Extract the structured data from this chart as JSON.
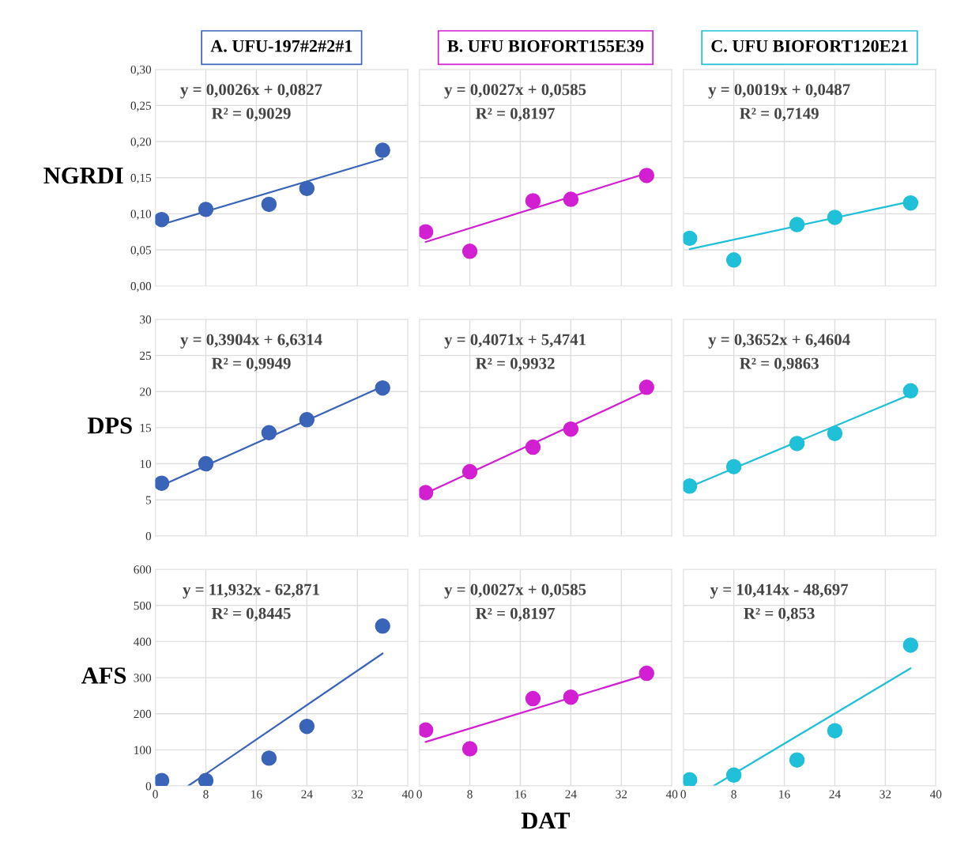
{
  "chart_data": [
    {
      "type": "scatter",
      "title": "A. UFU-197#2#2#1",
      "ylabel": "NGRDI",
      "xlim": [
        0,
        40
      ],
      "xticks": [
        0,
        8,
        16,
        24,
        32,
        40
      ],
      "ylim": [
        0,
        0.3
      ],
      "yticks": [
        {
          "value": 0,
          "label": "0,00"
        },
        {
          "value": 0.05,
          "label": "0,05"
        },
        {
          "value": 0.1,
          "label": "0,10"
        },
        {
          "value": 0.15,
          "label": "0,15"
        },
        {
          "value": 0.2,
          "label": "0,20"
        },
        {
          "value": 0.25,
          "label": "0,25"
        },
        {
          "value": 0.3,
          "label": "0,30"
        }
      ],
      "tick_labels": "y",
      "grid": true,
      "marker": "circle",
      "annotations": [
        "y = 0,0026x + 0,0827",
        "R² = 0,9029"
      ],
      "series": [
        {
          "color": "#3a64b8",
          "x": [
            1,
            8,
            18,
            24,
            36
          ],
          "values": [
            0.092,
            0.106,
            0.113,
            0.135,
            0.188
          ]
        },
        {
          "type": "line",
          "marker": "none",
          "color": "#3a64b8",
          "x": [
            1,
            36
          ],
          "values": [
            0.085,
            0.176
          ]
        }
      ]
    },
    {
      "type": "scatter",
      "title": "B. UFU BIOFORT155E39",
      "xlim": [
        0,
        40
      ],
      "xticks": [
        0,
        8,
        16,
        24,
        32,
        40
      ],
      "ylim": [
        0,
        0.3
      ],
      "yticks": [
        0,
        0.05,
        0.1,
        0.15,
        0.2,
        0.25,
        0.3
      ],
      "tick_labels": false,
      "grid": true,
      "marker": "circle",
      "annotations": [
        "y = 0,0027x + 0,0585",
        "R² = 0,8197"
      ],
      "series": [
        {
          "color": "#d21fd2",
          "x": [
            1,
            8,
            18,
            24,
            36
          ],
          "values": [
            0.075,
            0.048,
            0.118,
            0.12,
            0.153
          ]
        },
        {
          "type": "line",
          "marker": "none",
          "color": "#d21fd2",
          "x": [
            1,
            36
          ],
          "values": [
            0.061,
            0.156
          ]
        }
      ]
    },
    {
      "type": "scatter",
      "title": "C. UFU BIOFORT120E21",
      "xlim": [
        0,
        40
      ],
      "xticks": [
        0,
        8,
        16,
        24,
        32,
        40
      ],
      "ylim": [
        0,
        0.3
      ],
      "yticks": [
        0,
        0.05,
        0.1,
        0.15,
        0.2,
        0.25,
        0.3
      ],
      "tick_labels": false,
      "grid": true,
      "marker": "circle",
      "annotations": [
        "y = 0,0019x + 0,0487",
        "R² = 0,7149"
      ],
      "series": [
        {
          "color": "#1fc0d8",
          "x": [
            1,
            8,
            18,
            24,
            36
          ],
          "values": [
            0.066,
            0.036,
            0.085,
            0.095,
            0.115
          ]
        },
        {
          "type": "line",
          "marker": "none",
          "color": "#1fc0d8",
          "x": [
            1,
            36
          ],
          "values": [
            0.051,
            0.117
          ]
        }
      ]
    },
    {
      "type": "scatter",
      "ylabel": "DPS",
      "xlim": [
        0,
        40
      ],
      "xticks": [
        0,
        8,
        16,
        24,
        32,
        40
      ],
      "ylim": [
        0,
        30
      ],
      "yticks": [
        0,
        5,
        10,
        15,
        20,
        25,
        30
      ],
      "tick_labels": "y",
      "grid": true,
      "marker": "circle",
      "annotations": [
        "y = 0,3904x + 6,6314",
        "R² = 0,9949"
      ],
      "series": [
        {
          "color": "#3a64b8",
          "x": [
            1,
            8,
            18,
            24,
            36
          ],
          "values": [
            7.3,
            10,
            14.3,
            16.1,
            20.5
          ]
        },
        {
          "type": "line",
          "marker": "none",
          "color": "#3a64b8",
          "x": [
            1,
            36
          ],
          "values": [
            7.0,
            20.7
          ]
        }
      ]
    },
    {
      "type": "scatter",
      "xlim": [
        0,
        40
      ],
      "xticks": [
        0,
        8,
        16,
        24,
        32,
        40
      ],
      "ylim": [
        0,
        30
      ],
      "yticks": [
        0,
        5,
        10,
        15,
        20,
        25,
        30
      ],
      "tick_labels": false,
      "grid": true,
      "marker": "circle",
      "annotations": [
        "y = 0,4071x + 5,4741",
        "R² = 0,9932"
      ],
      "series": [
        {
          "color": "#d21fd2",
          "x": [
            1,
            8,
            18,
            24,
            36
          ],
          "values": [
            6.0,
            8.9,
            12.3,
            14.8,
            20.6
          ]
        },
        {
          "type": "line",
          "marker": "none",
          "color": "#d21fd2",
          "x": [
            1,
            36
          ],
          "values": [
            5.9,
            20.1
          ]
        }
      ]
    },
    {
      "type": "scatter",
      "xlim": [
        0,
        40
      ],
      "xticks": [
        0,
        8,
        16,
        24,
        32,
        40
      ],
      "ylim": [
        0,
        30
      ],
      "yticks": [
        0,
        5,
        10,
        15,
        20,
        25,
        30
      ],
      "tick_labels": false,
      "grid": true,
      "marker": "circle",
      "annotations": [
        "y = 0,3652x + 6,4604",
        "R² = 0,9863"
      ],
      "series": [
        {
          "color": "#1fc0d8",
          "x": [
            1,
            8,
            18,
            24,
            36
          ],
          "values": [
            6.9,
            9.6,
            12.8,
            14.2,
            20.1
          ]
        },
        {
          "type": "line",
          "marker": "none",
          "color": "#1fc0d8",
          "x": [
            1,
            36
          ],
          "values": [
            6.8,
            19.6
          ]
        }
      ]
    },
    {
      "type": "scatter",
      "ylabel": "AFS",
      "xlim": [
        0,
        40
      ],
      "xticks": [
        0,
        8,
        16,
        24,
        32,
        40
      ],
      "ylim": [
        0,
        600
      ],
      "yticks": [
        0,
        100,
        200,
        300,
        400,
        500,
        600
      ],
      "grid": true,
      "marker": "circle",
      "annotations": [
        "y = 11,932x - 62,871",
        "R² = 0,8445"
      ],
      "series": [
        {
          "color": "#3a64b8",
          "x": [
            1,
            8,
            18,
            24,
            36
          ],
          "values": [
            15,
            15,
            77,
            165,
            443
          ]
        },
        {
          "type": "line",
          "marker": "none",
          "color": "#3a64b8",
          "x": [
            5.2,
            36
          ],
          "values": [
            0,
            367
          ]
        }
      ]
    },
    {
      "type": "scatter",
      "xlabel": "DAT",
      "xlim": [
        0,
        40
      ],
      "xticks": [
        0,
        8,
        16,
        24,
        32,
        40
      ],
      "ylim": [
        0,
        600
      ],
      "yticks": [
        0,
        100,
        200,
        300,
        400,
        500,
        600
      ],
      "tick_labels": "x",
      "grid": true,
      "marker": "circle",
      "annotations": [
        "y = 0,0027x + 0,0585",
        "R² = 0,8197"
      ],
      "series": [
        {
          "color": "#d21fd2",
          "x": [
            1,
            8,
            18,
            24,
            36
          ],
          "values": [
            155,
            103,
            242,
            246,
            312
          ]
        },
        {
          "type": "line",
          "marker": "none",
          "color": "#d21fd2",
          "x": [
            1,
            36
          ],
          "values": [
            122,
            308
          ]
        }
      ]
    },
    {
      "type": "scatter",
      "xlim": [
        0,
        40
      ],
      "xticks": [
        0,
        8,
        16,
        24,
        32,
        40
      ],
      "ylim": [
        0,
        600
      ],
      "yticks": [
        0,
        100,
        200,
        300,
        400,
        500,
        600
      ],
      "tick_labels": "x",
      "grid": true,
      "marker": "circle",
      "annotations": [
        "y = 10,414x - 48,697",
        "R² = 0,853"
      ],
      "series": [
        {
          "color": "#1fc0d8",
          "x": [
            1,
            8,
            18,
            24,
            36
          ],
          "values": [
            17,
            30,
            72,
            153,
            390
          ]
        },
        {
          "type": "line",
          "marker": "none",
          "color": "#1fc0d8",
          "x": [
            4.8,
            36
          ],
          "values": [
            0,
            326
          ]
        }
      ]
    }
  ]
}
